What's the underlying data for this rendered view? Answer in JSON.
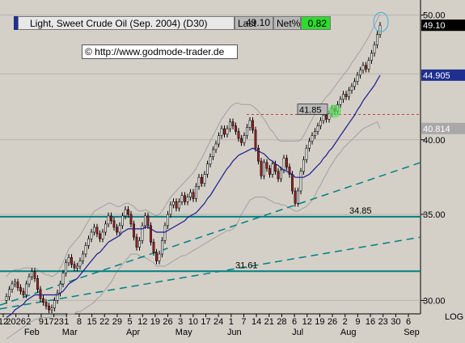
{
  "header": {
    "title": "Light, Sweet Crude Oil (Sep. 2004) (D30)",
    "last_label": "Last",
    "last_value": "49.10",
    "net_label": "Net%",
    "net_value": "0.82"
  },
  "copyright": "© http://www.godmode-trader.de",
  "log_label": "LOG",
  "colors": {
    "background": "#d4d0c8",
    "candle_up": "#ffffff",
    "candle_down": "#b02020",
    "wick": "#000000",
    "bollinger": "#a0a0a0",
    "moving_average": "#1a1a8c",
    "support_lines": "#008080",
    "resistance_dotted": "#c04040",
    "ma_badge": "#1f2f8f",
    "lower_band_badge": "#a8a8a8",
    "net_positive": "#2edb2e"
  },
  "chart_data": {
    "type": "candlestick",
    "y_scale": "log",
    "ylim": [
      29.5,
      51.0
    ],
    "y_ticks": [
      30.0,
      35.0,
      40.0,
      45.0,
      50.0
    ],
    "y_tick_labels": [
      "30.00",
      "35.00",
      "40.00",
      "45.00",
      "50.00"
    ],
    "x_day_labels": [
      "12",
      "2026",
      "2",
      "9",
      "1723",
      "1",
      "8",
      "15",
      "22",
      "29",
      "5",
      "12",
      "19",
      "26",
      "3",
      "10",
      "17",
      "24",
      "1",
      "7",
      "14",
      "21",
      "28",
      "6",
      "12",
      "19",
      "26",
      "2",
      "9",
      "16",
      "23",
      "30",
      "6"
    ],
    "x_month_labels": [
      "Feb",
      "Mar",
      "Apr",
      "May",
      "Jun",
      "Jul",
      "Aug",
      "Sep"
    ],
    "price_badges": [
      {
        "text": "49.10",
        "value": 49.1,
        "color": "#000000"
      },
      {
        "text": "44.905",
        "value": 44.905,
        "color": "#1f2f8f"
      },
      {
        "text": "40.814",
        "value": 40.814,
        "color": "#a8a8a8"
      }
    ],
    "horizontal_levels": [
      {
        "value": 34.85,
        "label": "34.85"
      },
      {
        "value": 31.61,
        "label": "31.61"
      }
    ],
    "resistance_level": {
      "value": 41.85,
      "label": "41.85"
    },
    "closes": [
      30.2,
      30.6,
      30.9,
      31.0,
      30.7,
      30.5,
      30.3,
      30.9,
      31.3,
      31.6,
      31.2,
      30.6,
      30.1,
      29.9,
      29.7,
      29.5,
      29.6,
      30.0,
      30.4,
      30.9,
      31.5,
      32.1,
      32.4,
      32.0,
      31.8,
      31.9,
      32.2,
      32.6,
      33.1,
      33.5,
      33.9,
      34.2,
      33.8,
      33.5,
      33.9,
      34.4,
      34.9,
      34.6,
      34.2,
      33.9,
      34.3,
      34.9,
      35.3,
      35.0,
      34.4,
      33.6,
      33.0,
      33.4,
      34.3,
      34.9,
      34.3,
      33.3,
      32.7,
      32.2,
      32.6,
      33.4,
      34.3,
      35.0,
      35.6,
      35.8,
      35.4,
      35.8,
      36.2,
      35.8,
      36.1,
      36.4,
      36.0,
      36.8,
      37.4,
      37.0,
      37.6,
      38.3,
      38.8,
      39.3,
      39.7,
      40.3,
      40.8,
      40.4,
      40.8,
      41.3,
      41.0,
      40.6,
      40.1,
      39.8,
      40.3,
      40.9,
      41.4,
      40.7,
      39.4,
      38.5,
      37.5,
      38.4,
      38.0,
      37.6,
      38.3,
      37.8,
      37.3,
      37.9,
      38.7,
      38.1,
      37.6,
      36.5,
      35.7,
      36.5,
      37.8,
      38.6,
      39.4,
      39.9,
      40.3,
      40.6,
      41.0,
      41.4,
      41.8,
      41.5,
      41.9,
      42.3,
      42.1,
      42.6,
      43.0,
      43.4,
      43.2,
      43.7,
      44.0,
      44.4,
      44.9,
      45.3,
      45.7,
      45.4,
      46.1,
      46.7,
      47.4,
      48.3,
      49.1
    ],
    "moving_average": [
      29.1,
      29.2,
      29.3,
      29.5,
      29.6,
      29.7,
      29.8,
      30.0,
      30.1,
      30.2,
      30.3,
      30.3,
      30.3,
      30.3,
      30.3,
      30.3,
      30.3,
      30.3,
      30.3,
      30.4,
      30.5,
      30.7,
      30.9,
      31.0,
      31.1,
      31.2,
      31.4,
      31.6,
      31.8,
      32.0,
      32.2,
      32.4,
      32.6,
      32.7,
      32.9,
      33.1,
      33.3,
      33.4,
      33.5,
      33.6,
      33.7,
      33.9,
      34.0,
      34.1,
      34.1,
      34.1,
      34.1,
      34.1,
      34.1,
      34.2,
      34.2,
      34.1,
      34.0,
      33.9,
      33.9,
      33.9,
      33.9,
      34.0,
      34.1,
      34.2,
      34.3,
      34.4,
      34.5,
      34.6,
      34.8,
      34.9,
      35.0,
      35.1,
      35.3,
      35.5,
      35.7,
      36.0,
      36.2,
      36.5,
      36.8,
      37.1,
      37.4,
      37.7,
      38.0,
      38.2,
      38.5,
      38.7,
      38.9,
      39.0,
      39.1,
      39.2,
      39.3,
      39.4,
      39.3,
      39.2,
      39.1,
      39.0,
      38.8,
      38.6,
      38.5,
      38.3,
      38.2,
      38.0,
      37.9,
      37.8,
      37.7,
      37.6,
      37.4,
      37.4,
      37.4,
      37.4,
      37.5,
      37.6,
      37.8,
      38.0,
      38.2,
      38.4,
      38.7,
      38.9,
      39.2,
      39.4,
      39.7,
      40.0,
      40.3,
      40.6,
      40.9,
      41.2,
      41.5,
      41.8,
      42.2,
      42.5,
      42.9,
      43.2,
      43.5,
      43.8,
      44.1,
      44.5,
      44.9
    ],
    "upper_band": [
      31.3,
      31.5,
      31.6,
      31.7,
      31.7,
      31.7,
      31.8,
      31.8,
      31.8,
      31.8,
      31.8,
      31.7,
      31.6,
      31.5,
      31.4,
      31.4,
      31.3,
      31.4,
      31.5,
      31.8,
      32.1,
      32.5,
      32.9,
      33.1,
      33.3,
      33.5,
      33.7,
      34.0,
      34.3,
      34.6,
      34.9,
      35.2,
      35.3,
      35.4,
      35.5,
      35.6,
      35.7,
      35.7,
      35.6,
      35.5,
      35.5,
      35.6,
      35.7,
      35.7,
      35.6,
      35.5,
      35.3,
      35.2,
      35.2,
      35.3,
      35.2,
      35.1,
      35.0,
      34.9,
      35.0,
      35.2,
      35.5,
      35.8,
      36.1,
      36.3,
      36.5,
      36.7,
      36.9,
      37.1,
      37.3,
      37.5,
      37.7,
      38.0,
      38.4,
      38.7,
      39.1,
      39.5,
      39.9,
      40.3,
      40.7,
      41.1,
      41.5,
      41.8,
      42.1,
      42.4,
      42.6,
      42.7,
      42.7,
      42.6,
      42.6,
      42.6,
      42.6,
      42.5,
      42.3,
      42.1,
      41.8,
      41.5,
      41.2,
      40.8,
      40.6,
      40.3,
      40.0,
      39.9,
      39.9,
      39.9,
      39.9,
      39.9,
      39.9,
      39.9,
      40.0,
      40.3,
      40.7,
      41.1,
      41.5,
      41.9,
      42.3,
      42.6,
      42.9,
      43.2,
      43.4,
      43.7,
      44.0,
      44.3,
      44.6,
      44.9,
      45.2,
      45.5,
      45.9,
      46.2,
      46.6,
      46.9,
      47.3,
      47.7,
      48.1,
      48.6,
      49.1,
      49.6,
      50.1
    ],
    "lower_band": [
      28.0,
      28.1,
      28.2,
      28.3,
      28.4,
      28.5,
      28.6,
      28.7,
      28.8,
      28.9,
      29.0,
      29.0,
      29.1,
      29.1,
      29.1,
      29.1,
      29.2,
      29.2,
      29.2,
      29.2,
      29.2,
      29.2,
      29.3,
      29.3,
      29.3,
      29.4,
      29.4,
      29.5,
      29.6,
      29.7,
      29.8,
      29.9,
      30.1,
      30.2,
      30.4,
      30.6,
      30.8,
      31.0,
      31.3,
      31.6,
      31.8,
      32.0,
      32.2,
      32.4,
      32.6,
      32.6,
      32.6,
      32.5,
      32.4,
      32.4,
      32.3,
      32.2,
      32.1,
      31.9,
      31.9,
      31.9,
      31.9,
      32.0,
      32.1,
      32.2,
      32.3,
      32.4,
      32.5,
      32.5,
      32.6,
      32.7,
      32.8,
      32.9,
      33.0,
      33.1,
      33.2,
      33.3,
      33.4,
      33.5,
      33.6,
      33.7,
      33.8,
      33.9,
      34.0,
      34.0,
      34.1,
      34.3,
      34.6,
      35.0,
      35.3,
      35.6,
      35.9,
      36.0,
      36.1,
      36.1,
      36.1,
      36.1,
      36.0,
      35.9,
      35.8,
      35.7,
      35.7,
      35.6,
      35.6,
      35.5,
      35.4,
      35.3,
      35.2,
      35.2,
      35.3,
      35.4,
      35.5,
      35.7,
      35.9,
      36.2,
      36.6,
      36.9,
      37.3,
      37.6,
      38.0,
      38.3,
      38.6,
      38.9,
      39.1,
      39.4,
      39.6,
      39.8,
      40.0,
      40.2,
      40.4,
      40.6,
      40.8,
      40.9,
      41.0,
      41.1,
      41.2,
      41.3,
      40.81
    ]
  }
}
